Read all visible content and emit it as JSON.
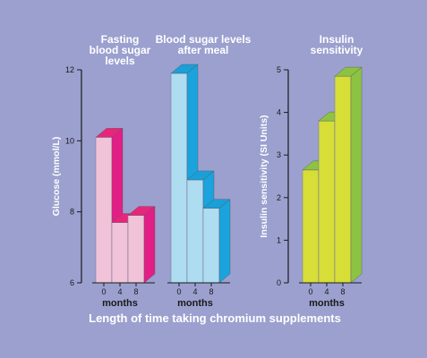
{
  "chart_data": [
    {
      "type": "bar",
      "ylabel": "Glucose (mmol/L)",
      "ylim": [
        6,
        12
      ],
      "yticks": [
        6,
        8,
        10,
        12
      ],
      "groups": [
        {
          "title_lines": [
            "Fasting",
            "blood sugar",
            "levels"
          ],
          "categories": [
            "0",
            "4",
            "8"
          ],
          "values": [
            10.1,
            7.7,
            7.9
          ],
          "xlabel": "months",
          "colors": {
            "front": "#f1c3d8",
            "top": "#e7257b",
            "side": "#e21f86"
          }
        },
        {
          "title_lines": [
            "Blood sugar levels",
            "after meal"
          ],
          "categories": [
            "0",
            "4",
            "8"
          ],
          "values": [
            11.9,
            8.9,
            8.1
          ],
          "xlabel": "months",
          "colors": {
            "front": "#aedcf0",
            "top": "#1a9fd8",
            "side": "#1aa3dc"
          }
        }
      ]
    },
    {
      "type": "bar",
      "ylabel": "Insulin sensitivity (SI Units)",
      "ylim": [
        0,
        5
      ],
      "yticks": [
        0,
        1,
        2,
        3,
        4,
        5
      ],
      "groups": [
        {
          "title_lines": [
            "Insulin",
            "sensitivity"
          ],
          "categories": [
            "0",
            "4",
            "8"
          ],
          "values": [
            2.65,
            3.8,
            4.85
          ],
          "xlabel": "months",
          "colors": {
            "front": "#d6de37",
            "top": "#8cc342",
            "side": "#8cc342"
          }
        }
      ]
    }
  ],
  "footer": {
    "text": "Length of time taking chromium supplements"
  },
  "colors": {
    "background": "#9ba0cf",
    "axis": "#1a1a1a"
  }
}
